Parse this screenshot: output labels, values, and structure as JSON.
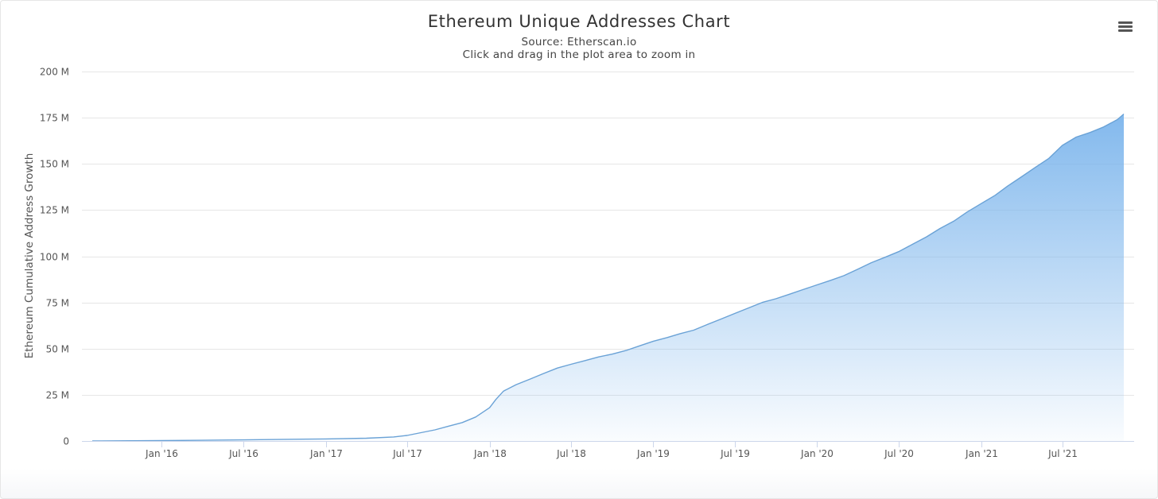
{
  "chart_data": {
    "type": "area",
    "title": "Ethereum Unique Addresses Chart",
    "subtitle": "Source: Etherscan.io",
    "hint": "Click and drag in the plot area to zoom in",
    "xlabel": "",
    "ylabel": "Ethereum Cumulative Address Growth",
    "y_range": [
      0,
      200000000
    ],
    "y_ticks": [
      0,
      25000000,
      50000000,
      75000000,
      100000000,
      125000000,
      150000000,
      175000000,
      200000000
    ],
    "y_tick_labels": [
      "0",
      "25 M",
      "50 M",
      "75 M",
      "100 M",
      "125 M",
      "150 M",
      "175 M",
      "200 M"
    ],
    "x_range": [
      "2015-07-30",
      "2021-11-15"
    ],
    "x_ticks": [
      "2016-01-01",
      "2016-07-01",
      "2017-01-01",
      "2017-07-01",
      "2018-01-01",
      "2018-07-01",
      "2019-01-01",
      "2019-07-01",
      "2020-01-01",
      "2020-07-01",
      "2021-01-01",
      "2021-07-01"
    ],
    "x_tick_labels": [
      "Jan '16",
      "Jul '16",
      "Jan '17",
      "Jul '17",
      "Jan '18",
      "Jul '18",
      "Jan '19",
      "Jul '19",
      "Jan '20",
      "Jul '20",
      "Jan '21",
      "Jul '21"
    ],
    "grid": true,
    "legend": "none",
    "series_color": "#7cb5ec",
    "line_color": "#6aa2d6",
    "series": [
      {
        "x": [
          "2015-07-30",
          "2016-01-01",
          "2016-07-01",
          "2017-01-01",
          "2017-04-01",
          "2017-06-01",
          "2017-07-01",
          "2017-08-01",
          "2017-09-01",
          "2017-10-01",
          "2017-11-01",
          "2017-12-01",
          "2018-01-01",
          "2018-01-15",
          "2018-02-01",
          "2018-03-01",
          "2018-04-01",
          "2018-05-01",
          "2018-06-01",
          "2018-07-01",
          "2018-08-01",
          "2018-09-01",
          "2018-10-01",
          "2018-11-01",
          "2018-12-01",
          "2019-01-01",
          "2019-02-01",
          "2019-03-01",
          "2019-04-01",
          "2019-05-01",
          "2019-06-01",
          "2019-07-01",
          "2019-08-01",
          "2019-09-01",
          "2019-10-01",
          "2019-11-01",
          "2019-12-01",
          "2020-01-01",
          "2020-02-01",
          "2020-03-01",
          "2020-04-01",
          "2020-05-01",
          "2020-06-01",
          "2020-07-01",
          "2020-08-01",
          "2020-09-01",
          "2020-10-01",
          "2020-11-01",
          "2020-12-01",
          "2021-01-01",
          "2021-02-01",
          "2021-03-01",
          "2021-04-01",
          "2021-05-01",
          "2021-06-01",
          "2021-07-01",
          "2021-08-01",
          "2021-09-01",
          "2021-10-01",
          "2021-11-01",
          "2021-11-15"
        ],
        "values": [
          0,
          200000,
          600000,
          1100000,
          1500000,
          2200000,
          3000000,
          4500000,
          6000000,
          8000000,
          10000000,
          13000000,
          18000000,
          22500000,
          27000000,
          30500000,
          33500000,
          36500000,
          39500000,
          41500000,
          43500000,
          45500000,
          47000000,
          49000000,
          51500000,
          54000000,
          56000000,
          58000000,
          60000000,
          63000000,
          66000000,
          69000000,
          72000000,
          75000000,
          77000000,
          79500000,
          82000000,
          84500000,
          87000000,
          89500000,
          93000000,
          96500000,
          99500000,
          102500000,
          106500000,
          110500000,
          115000000,
          119000000,
          124000000,
          128500000,
          133000000,
          138000000,
          143000000,
          148000000,
          153000000,
          160000000,
          164500000,
          167000000,
          170000000,
          174000000,
          177000000
        ]
      }
    ]
  }
}
